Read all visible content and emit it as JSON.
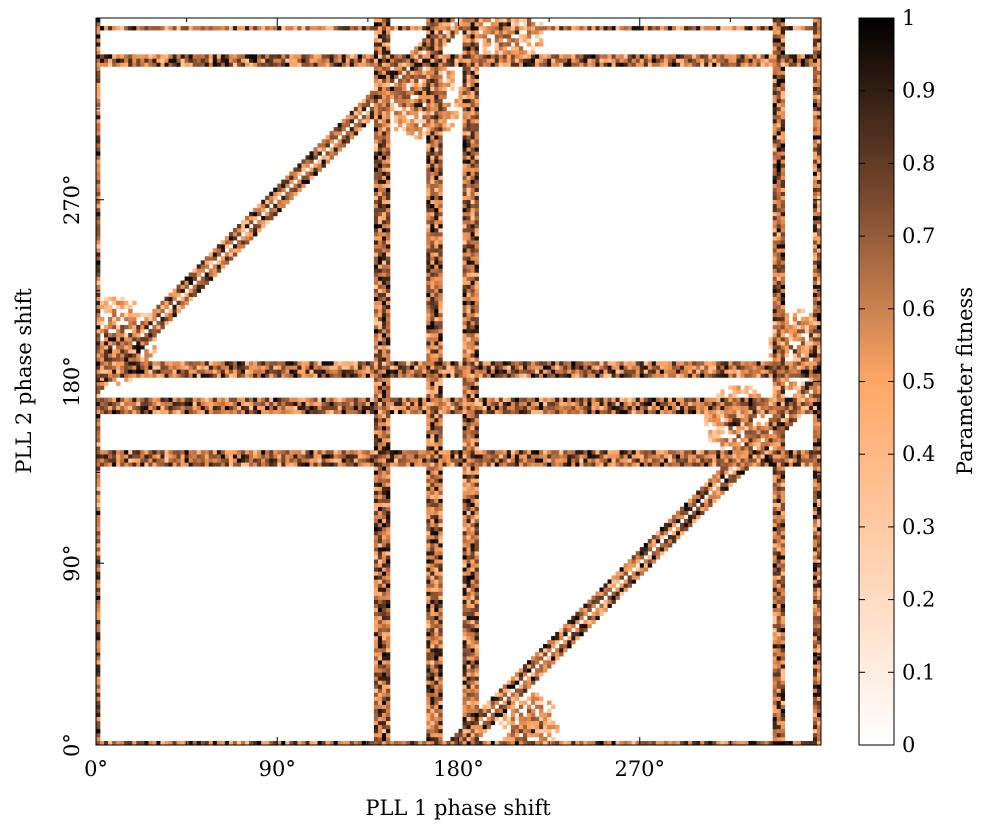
{
  "chart_data": {
    "type": "heatmap",
    "title": "",
    "xlabel": "PLL 1 phase shift",
    "ylabel": "PLL 2 phase shift",
    "xlim": [
      0,
      360
    ],
    "ylim": [
      0,
      360
    ],
    "x_ticks": [
      {
        "value": 0,
        "label": "0°"
      },
      {
        "value": 90,
        "label": "90°"
      },
      {
        "value": 180,
        "label": "180°"
      },
      {
        "value": 270,
        "label": "270°"
      }
    ],
    "y_ticks": [
      {
        "value": 0,
        "label": "0°"
      },
      {
        "value": 90,
        "label": "90°"
      },
      {
        "value": 180,
        "label": "180°"
      },
      {
        "value": 270,
        "label": "270°"
      }
    ],
    "colorbar": {
      "label": "Parameter fitness",
      "range": [
        0,
        1
      ],
      "ticks": [
        {
          "value": 0,
          "label": "0"
        },
        {
          "value": 0.1,
          "label": "0.1"
        },
        {
          "value": 0.2,
          "label": "0.2"
        },
        {
          "value": 0.3,
          "label": "0.3"
        },
        {
          "value": 0.4,
          "label": "0.4"
        },
        {
          "value": 0.5,
          "label": "0.5"
        },
        {
          "value": 0.6,
          "label": "0.6"
        },
        {
          "value": 0.7,
          "label": "0.7"
        },
        {
          "value": 0.8,
          "label": "0.8"
        },
        {
          "value": 0.9,
          "label": "0.9"
        },
        {
          "value": 1,
          "label": "1"
        }
      ],
      "colormap": [
        "#ffffff",
        "#ffa766",
        "#cc7a47",
        "#7a4a2e",
        "#000000"
      ]
    },
    "bands_x": [
      {
        "from": 0,
        "to": 1.5
      },
      {
        "from": 139,
        "to": 145
      },
      {
        "from": 165,
        "to": 172
      },
      {
        "from": 183,
        "to": 190
      },
      {
        "from": 336,
        "to": 342
      },
      {
        "from": 357,
        "to": 360
      }
    ],
    "bands_y": [
      {
        "from": 0,
        "to": 1.5
      },
      {
        "from": 139,
        "to": 145
      },
      {
        "from": 165,
        "to": 172
      },
      {
        "from": 183,
        "to": 190
      },
      {
        "from": 336,
        "to": 342
      },
      {
        "from": 354,
        "to": 356
      }
    ],
    "diagonal_bands": [
      {
        "offset": 180,
        "width": 5
      },
      {
        "offset": -180,
        "width": 5
      }
    ],
    "blobs": [
      {
        "x": 8,
        "y": 200,
        "radius": 22
      },
      {
        "x": 162,
        "y": 320,
        "radius": 20
      },
      {
        "x": 205,
        "y": 355,
        "radius": 18
      },
      {
        "x": 355,
        "y": 195,
        "radius": 22
      },
      {
        "x": 320,
        "y": 160,
        "radius": 18
      },
      {
        "x": 215,
        "y": 10,
        "radius": 16
      }
    ]
  }
}
